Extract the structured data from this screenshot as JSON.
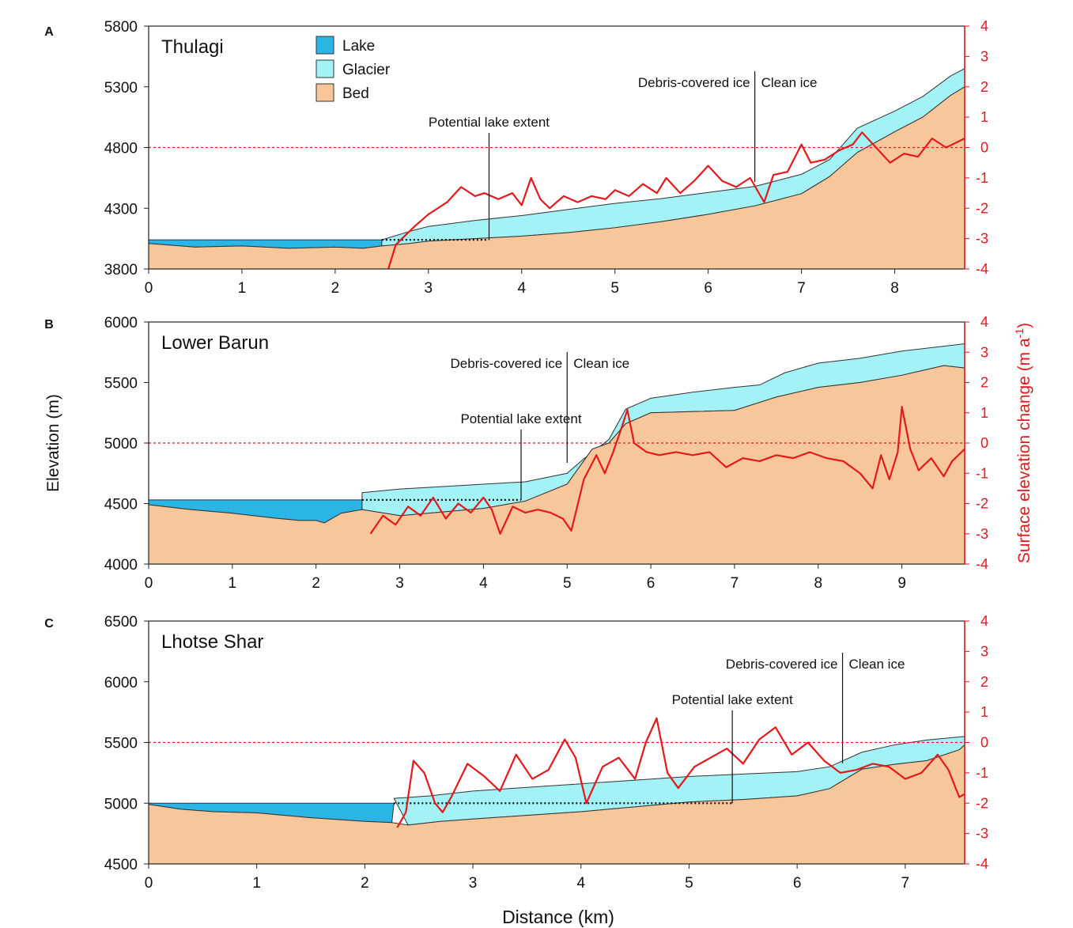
{
  "figure": {
    "xlabel": "Distance (km)",
    "ylabel": "Elevation (m)",
    "y2label": "Surface elevation change (m a",
    "y2label_sup": "-1",
    "y2label_end": ")",
    "legend": [
      {
        "label": "Lake",
        "color": "#2bb5e6"
      },
      {
        "label": "Glacier",
        "color": "#a3f2f5"
      },
      {
        "label": "Bed",
        "color": "#f7c79b"
      }
    ],
    "colors": {
      "lake": "#2bb5e6",
      "glacier": "#a3f2f5",
      "bed": "#f7c79b",
      "change": "#e3191c",
      "zero": "#e3191c"
    }
  },
  "chart_data": [
    {
      "type": "area",
      "panel": "A",
      "title": "Thulagi",
      "xlim": [
        0,
        8.75
      ],
      "xticks": [
        0,
        1,
        2,
        3,
        4,
        5,
        6,
        7,
        8
      ],
      "ylim": [
        3800,
        5800
      ],
      "yticks": [
        3800,
        4300,
        4800,
        5300,
        5800
      ],
      "y2lim": [
        -4,
        4
      ],
      "y2ticks": [
        -4,
        -3,
        -2,
        -1,
        0,
        1,
        2,
        3,
        4
      ],
      "bed": {
        "x": [
          0,
          0.5,
          1.0,
          1.5,
          2.0,
          2.3,
          2.5,
          2.8,
          3.0,
          3.5,
          4.0,
          4.5,
          5.0,
          5.5,
          6.0,
          6.5,
          7.0,
          7.3,
          7.6,
          8.0,
          8.3,
          8.6,
          8.75
        ],
        "y": [
          4010,
          3980,
          3990,
          3970,
          3980,
          3970,
          3990,
          4010,
          4030,
          4050,
          4070,
          4100,
          4140,
          4190,
          4250,
          4320,
          4420,
          4560,
          4760,
          4930,
          5050,
          5230,
          5300
        ]
      },
      "lake": {
        "x": [
          0,
          2.5
        ],
        "surface": 4040
      },
      "glacier_surface": {
        "x": [
          2.5,
          2.8,
          3.0,
          3.5,
          4.0,
          4.5,
          5.0,
          5.5,
          6.0,
          6.5,
          7.0,
          7.3,
          7.6,
          8.0,
          8.3,
          8.6,
          8.75
        ],
        "y": [
          4040,
          4110,
          4150,
          4200,
          4240,
          4290,
          4340,
          4380,
          4430,
          4480,
          4580,
          4700,
          4960,
          5100,
          5220,
          5390,
          5450
        ]
      },
      "potential_lake": {
        "x": [
          2.5,
          3.65
        ],
        "y": 4040
      },
      "annotations": {
        "lake_extent": "Potential lake extent",
        "debris": "Debris-covered ice",
        "clean": "Clean ice",
        "lake_x": 3.65,
        "debris_x": 6.5
      },
      "change": {
        "x": [
          2.57,
          2.65,
          2.75,
          2.85,
          3.0,
          3.1,
          3.2,
          3.35,
          3.5,
          3.6,
          3.75,
          3.9,
          4.0,
          4.1,
          4.2,
          4.3,
          4.45,
          4.6,
          4.75,
          4.9,
          5.0,
          5.15,
          5.3,
          5.45,
          5.55,
          5.7,
          5.85,
          6.0,
          6.15,
          6.3,
          6.45,
          6.6,
          6.7,
          6.85,
          7.0,
          7.1,
          7.25,
          7.4,
          7.55,
          7.65,
          7.8,
          7.95,
          8.1,
          8.25,
          8.4,
          8.55,
          8.75
        ],
        "y": [
          -4.0,
          -3.2,
          -2.9,
          -2.6,
          -2.2,
          -2.0,
          -1.8,
          -1.3,
          -1.6,
          -1.5,
          -1.7,
          -1.5,
          -1.9,
          -1.0,
          -1.7,
          -2.0,
          -1.6,
          -1.8,
          -1.6,
          -1.7,
          -1.4,
          -1.6,
          -1.2,
          -1.5,
          -1.0,
          -1.5,
          -1.1,
          -0.6,
          -1.1,
          -1.3,
          -1.0,
          -1.8,
          -0.9,
          -0.8,
          0.1,
          -0.5,
          -0.4,
          -0.1,
          0.1,
          0.5,
          0.0,
          -0.5,
          -0.2,
          -0.3,
          0.3,
          0.0,
          0.3
        ]
      }
    },
    {
      "type": "area",
      "panel": "B",
      "title": "Lower Barun",
      "xlim": [
        0,
        9.75
      ],
      "xticks": [
        0,
        1,
        2,
        3,
        4,
        5,
        6,
        7,
        8,
        9
      ],
      "ylim": [
        4000,
        6000
      ],
      "yticks": [
        4000,
        4500,
        5000,
        5500,
        6000
      ],
      "y2lim": [
        -4,
        4
      ],
      "y2ticks": [
        -4,
        -3,
        -2,
        -1,
        0,
        1,
        2,
        3,
        4
      ],
      "bed": {
        "x": [
          0,
          0.5,
          1.0,
          1.5,
          1.8,
          2.0,
          2.1,
          2.3,
          2.55,
          3.0,
          3.5,
          4.0,
          4.5,
          5.0,
          5.3,
          5.5,
          5.7,
          6.0,
          6.5,
          7.0,
          7.5,
          8.0,
          8.5,
          9.0,
          9.5,
          9.75
        ],
        "y": [
          4490,
          4450,
          4420,
          4380,
          4360,
          4360,
          4340,
          4420,
          4450,
          4400,
          4430,
          4460,
          4520,
          4660,
          4950,
          5000,
          5160,
          5250,
          5260,
          5270,
          5380,
          5460,
          5500,
          5560,
          5640,
          5620
        ]
      },
      "lake": {
        "x": [
          0,
          2.55
        ],
        "surface": 4530
      },
      "glacier_surface": {
        "x": [
          2.55,
          3.0,
          3.5,
          4.0,
          4.5,
          5.0,
          5.2,
          5.5,
          5.7,
          6.0,
          6.5,
          7.0,
          7.3,
          7.6,
          8.0,
          8.5,
          9.0,
          9.5,
          9.75
        ],
        "y": [
          4590,
          4620,
          4640,
          4660,
          4680,
          4750,
          4870,
          5030,
          5280,
          5370,
          5420,
          5460,
          5480,
          5580,
          5660,
          5700,
          5760,
          5800,
          5820
        ]
      },
      "potential_lake": {
        "x": [
          2.55,
          4.45
        ],
        "y": 4530
      },
      "annotations": {
        "lake_extent": "Potential lake extent",
        "debris": "Debris-covered ice",
        "clean": "Clean ice",
        "lake_x": 4.45,
        "debris_x": 5.0
      },
      "change": {
        "x": [
          2.65,
          2.8,
          2.95,
          3.1,
          3.25,
          3.4,
          3.55,
          3.7,
          3.85,
          4.0,
          4.1,
          4.2,
          4.35,
          4.5,
          4.65,
          4.8,
          4.95,
          5.05,
          5.2,
          5.35,
          5.45,
          5.55,
          5.65,
          5.72,
          5.8,
          5.95,
          6.1,
          6.3,
          6.5,
          6.7,
          6.9,
          7.1,
          7.3,
          7.5,
          7.7,
          7.9,
          8.1,
          8.3,
          8.5,
          8.65,
          8.75,
          8.85,
          8.95,
          9.0,
          9.1,
          9.2,
          9.35,
          9.5,
          9.6,
          9.75
        ],
        "y": [
          -3.0,
          -2.4,
          -2.7,
          -2.1,
          -2.4,
          -1.8,
          -2.5,
          -2.0,
          -2.3,
          -1.8,
          -2.2,
          -3.0,
          -2.1,
          -2.3,
          -2.2,
          -2.3,
          -2.5,
          -2.9,
          -1.2,
          -0.4,
          -1.0,
          -0.3,
          0.5,
          1.1,
          0.0,
          -0.3,
          -0.4,
          -0.3,
          -0.4,
          -0.3,
          -0.8,
          -0.5,
          -0.6,
          -0.4,
          -0.5,
          -0.3,
          -0.5,
          -0.6,
          -1.0,
          -1.5,
          -0.4,
          -1.2,
          -0.3,
          1.2,
          -0.2,
          -0.9,
          -0.5,
          -1.1,
          -0.6,
          -0.2
        ]
      }
    },
    {
      "type": "area",
      "panel": "C",
      "title": "Lhotse Shar",
      "xlim": [
        0,
        7.55
      ],
      "xticks": [
        0,
        1,
        2,
        3,
        4,
        5,
        6,
        7
      ],
      "ylim": [
        4500,
        6500
      ],
      "yticks": [
        4500,
        5000,
        5500,
        6000,
        6500
      ],
      "y2lim": [
        -4,
        4
      ],
      "y2ticks": [
        -4,
        -3,
        -2,
        -1,
        0,
        1,
        2,
        3,
        4
      ],
      "bed": {
        "x": [
          0,
          0.3,
          0.6,
          1.0,
          1.5,
          2.0,
          2.25,
          2.4,
          2.7,
          3.0,
          3.5,
          4.0,
          4.5,
          5.0,
          5.5,
          6.0,
          6.3,
          6.6,
          6.9,
          7.2,
          7.5,
          7.55
        ],
        "y": [
          4990,
          4950,
          4930,
          4920,
          4880,
          4850,
          4840,
          4820,
          4850,
          4870,
          4900,
          4930,
          4970,
          5010,
          5030,
          5060,
          5120,
          5280,
          5320,
          5350,
          5440,
          5480
        ]
      },
      "lake": {
        "x": [
          0,
          2.27
        ],
        "surface": 5000
      },
      "glacier_surface": {
        "x": [
          2.27,
          2.6,
          3.0,
          3.5,
          4.0,
          4.5,
          5.0,
          5.5,
          6.0,
          6.3,
          6.6,
          6.9,
          7.2,
          7.55
        ],
        "y": [
          5040,
          5060,
          5100,
          5130,
          5160,
          5190,
          5220,
          5240,
          5260,
          5300,
          5420,
          5480,
          5520,
          5550
        ]
      },
      "potential_lake": {
        "x": [
          2.27,
          5.4
        ],
        "y": 5000
      },
      "annotations": {
        "lake_extent": "Potential lake extent",
        "debris": "Debris-covered ice",
        "clean": "Clean ice",
        "lake_x": 5.4,
        "debris_x": 6.42
      },
      "change": {
        "x": [
          2.3,
          2.38,
          2.45,
          2.55,
          2.65,
          2.72,
          2.8,
          2.95,
          3.1,
          3.25,
          3.4,
          3.55,
          3.7,
          3.85,
          3.95,
          4.05,
          4.2,
          4.35,
          4.5,
          4.6,
          4.7,
          4.8,
          4.9,
          5.05,
          5.2,
          5.35,
          5.5,
          5.65,
          5.8,
          5.95,
          6.1,
          6.25,
          6.4,
          6.55,
          6.7,
          6.85,
          7.0,
          7.15,
          7.3,
          7.4,
          7.5,
          7.55
        ],
        "y": [
          -2.8,
          -2.3,
          -0.6,
          -1.0,
          -2.0,
          -2.3,
          -1.8,
          -0.7,
          -1.1,
          -1.6,
          -0.4,
          -1.2,
          -0.9,
          0.1,
          -0.5,
          -2.0,
          -0.8,
          -0.5,
          -1.2,
          0.0,
          0.8,
          -1.0,
          -1.5,
          -0.8,
          -0.5,
          -0.2,
          -0.7,
          0.1,
          0.5,
          -0.4,
          0.0,
          -0.6,
          -1.0,
          -0.9,
          -0.7,
          -0.8,
          -1.2,
          -1.0,
          -0.4,
          -0.9,
          -1.8,
          -1.7
        ]
      }
    }
  ]
}
